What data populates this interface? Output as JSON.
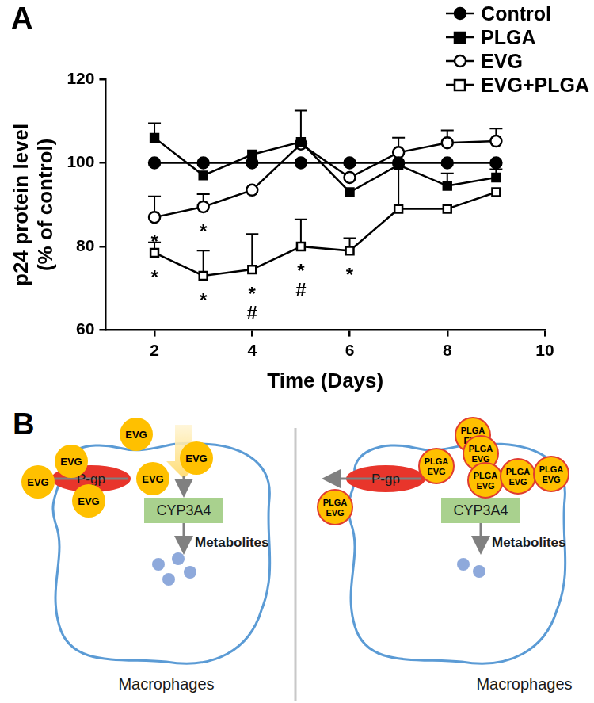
{
  "chart_data": {
    "type": "line",
    "panel_label": "A",
    "x_label": "Time (Days)",
    "y_label": [
      "p24 protein level",
      "(% of control)"
    ],
    "x": [
      2,
      3,
      4,
      5,
      6,
      7,
      8,
      9
    ],
    "xlim": [
      1,
      10
    ],
    "xticks": [
      2,
      4,
      6,
      8,
      10
    ],
    "ylim": [
      60,
      120
    ],
    "yticks": [
      60,
      80,
      100,
      120
    ],
    "grid": false,
    "legend": "top right",
    "series": [
      {
        "name": "Control",
        "color": "#000000",
        "marker": "circle",
        "values": [
          100,
          100,
          100,
          100,
          100,
          100,
          100,
          100
        ]
      },
      {
        "name": "PLGA",
        "color": "#000000",
        "marker": "square",
        "values": [
          106,
          97,
          102,
          105,
          93,
          99.5,
          94.5,
          96.5
        ],
        "errors": [
          3.5,
          null,
          null,
          null,
          null,
          null,
          3,
          2
        ]
      },
      {
        "name": "EVG",
        "color": "#000000",
        "marker": "open_circle",
        "values": [
          87,
          89.5,
          93.5,
          104.5,
          96.5,
          102.5,
          104.8,
          105.2
        ],
        "errors": [
          5,
          3,
          null,
          8,
          null,
          3.5,
          3,
          3
        ],
        "annotations": [
          [
            "*"
          ],
          [
            "*"
          ],
          null,
          null,
          null,
          null,
          null,
          null
        ]
      },
      {
        "name": "EVG+PLGA",
        "color": "#000000",
        "marker": "open_square",
        "values": [
          78.5,
          73,
          74.5,
          80,
          79,
          89,
          89,
          93
        ],
        "errors": [
          2.5,
          6,
          8.5,
          6.5,
          3,
          11,
          null,
          null
        ],
        "annotations": [
          [
            "*"
          ],
          [
            "*"
          ],
          [
            "*",
            "#"
          ],
          [
            "*",
            "#"
          ],
          [
            "*"
          ],
          null,
          null,
          null
        ]
      }
    ]
  },
  "diagram": {
    "panel_label": "B",
    "panels": [
      {
        "particles": [
          "EVG",
          "EVG",
          "EVG",
          "EVG",
          "EVG",
          "EVG"
        ],
        "transporter": "P-gp",
        "enzyme": "CYP3A4",
        "product": "Metabolites",
        "cell": "Macrophages"
      },
      {
        "particles": [
          "PLGA EVG",
          "PLGA EVG",
          "PLGA EVG",
          "PLGA EVG",
          "PLGA EVG",
          "PLGA EVG",
          "PLGA EVG"
        ],
        "transporter": "P-gp",
        "enzyme": "CYP3A4",
        "product": "Metabolites",
        "cell": "Macrophages"
      }
    ]
  }
}
